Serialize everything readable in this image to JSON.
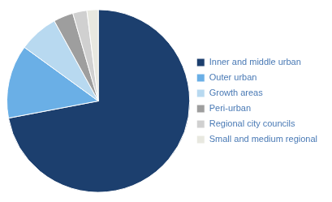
{
  "chart_data": {
    "type": "pie",
    "categories": [
      "Inner and middle urban",
      "Outer urban",
      "Growth areas",
      "Peri-urban",
      "Regional city councils",
      "Small and medium regional"
    ],
    "values": [
      72,
      13,
      7,
      3.5,
      2.5,
      2
    ],
    "colors": [
      "#1c3f6e",
      "#6aafe6",
      "#b8d9f0",
      "#9e9e9e",
      "#d0d0d0",
      "#e8e8e0"
    ],
    "legend": "right"
  }
}
